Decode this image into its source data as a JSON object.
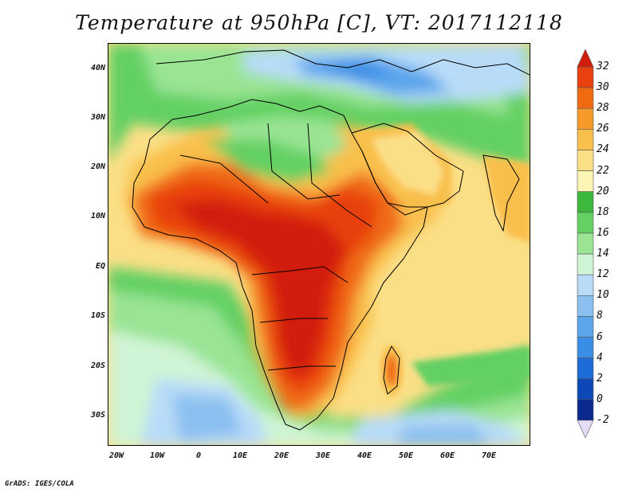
{
  "title": "Temperature at 950hPa [C], VT: 2017112118",
  "credit": "GrADS: IGES/COLA",
  "axes": {
    "lat_labels": [
      "40N",
      "30N",
      "20N",
      "10N",
      "EQ",
      "10S",
      "20S",
      "30S"
    ],
    "lon_labels": [
      "20W",
      "10W",
      "0",
      "10E",
      "20E",
      "30E",
      "40E",
      "50E",
      "60E",
      "70E"
    ]
  },
  "colorbar": {
    "labels": [
      "32",
      "30",
      "28",
      "26",
      "24",
      "22",
      "20",
      "18",
      "16",
      "14",
      "12",
      "10",
      "8",
      "6",
      "4",
      "2",
      "0",
      "-2"
    ],
    "colors": [
      "#d21c0c",
      "#e8400f",
      "#f06a12",
      "#f59a2a",
      "#f9bf4c",
      "#fbdf87",
      "#fbf5b6",
      "#3cb83c",
      "#64d064",
      "#9ae494",
      "#d0f4d6",
      "#b8dcf8",
      "#8cc0f0",
      "#5ca6ec",
      "#3a8ee6",
      "#1e6cd8",
      "#0e48b8",
      "#0a2a8e",
      "#e6dcf8"
    ]
  },
  "legend_colors": {
    "ocean_warm": "#fbdf87",
    "land_hot": "#e8400f",
    "cool_blue": "#8cc0f0",
    "green": "#64d064"
  }
}
